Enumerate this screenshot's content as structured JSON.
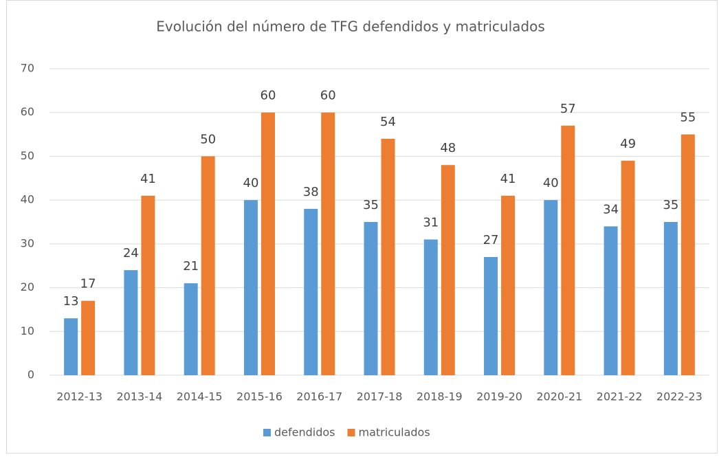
{
  "chart_data": {
    "type": "bar",
    "title": "Evolución del número de TFG defendidos y matriculados",
    "categories": [
      "2012-13",
      "2013-14",
      "2014-15",
      "2015-16",
      "2016-17",
      "2017-18",
      "2018-19",
      "2019-20",
      "2020-21",
      "2021-22",
      "2022-23"
    ],
    "series": [
      {
        "name": "defendidos",
        "color": "#5b9bd5",
        "values": [
          13,
          24,
          21,
          40,
          38,
          35,
          31,
          27,
          40,
          34,
          35
        ]
      },
      {
        "name": "matriculados",
        "color": "#ed7d31",
        "values": [
          17,
          41,
          50,
          60,
          60,
          54,
          48,
          41,
          57,
          49,
          55
        ]
      }
    ],
    "ylim": [
      0,
      70
    ],
    "yticks": [
      0,
      10,
      20,
      30,
      40,
      50,
      60,
      70
    ],
    "grid": true,
    "legend": "bottom"
  }
}
